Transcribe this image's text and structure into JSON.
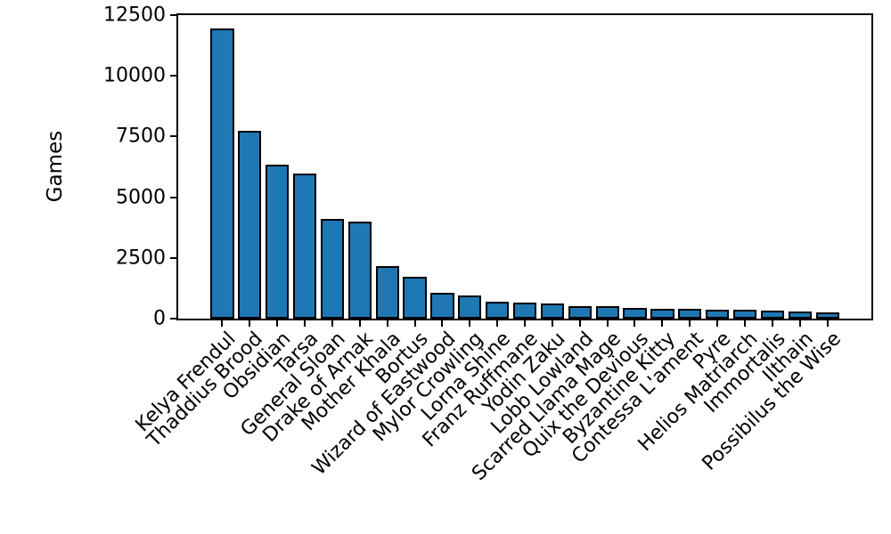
{
  "chart_data": {
    "type": "bar",
    "title": "",
    "xlabel": "",
    "ylabel": "Games",
    "ylim": [
      0,
      12500
    ],
    "yticks": [
      0,
      2500,
      5000,
      7500,
      10000,
      12500
    ],
    "grid": false,
    "legend": null,
    "bar_color": "#1f77b4",
    "bar_edge_color": "#000000",
    "background_color": "#ffffff",
    "categories": [
      "Kelya Frendul",
      "Thaddius Brood",
      "Obsidian",
      "Tarsa",
      "General Sloan",
      "Drake of Arnak",
      "Mother Khala",
      "Bortus",
      "Wizard of Eastwood",
      "Mylor Crowling",
      "Lorna Shine",
      "Franz Ruffmane",
      "Yodin Zaku",
      "Lobb Lowland",
      "Scarred Llama Mage",
      "Quix the Devious",
      "Byzantine Kitty",
      "Contessa L'ament",
      "Pyre",
      "Helios Matriarch",
      "Immortalis",
      "Ilthain",
      "Possibilus the Wise"
    ],
    "values": [
      11950,
      7750,
      6350,
      5980,
      4100,
      4000,
      2150,
      1740,
      1060,
      960,
      690,
      650,
      630,
      510,
      500,
      430,
      420,
      390,
      380,
      360,
      320,
      300,
      240
    ]
  }
}
